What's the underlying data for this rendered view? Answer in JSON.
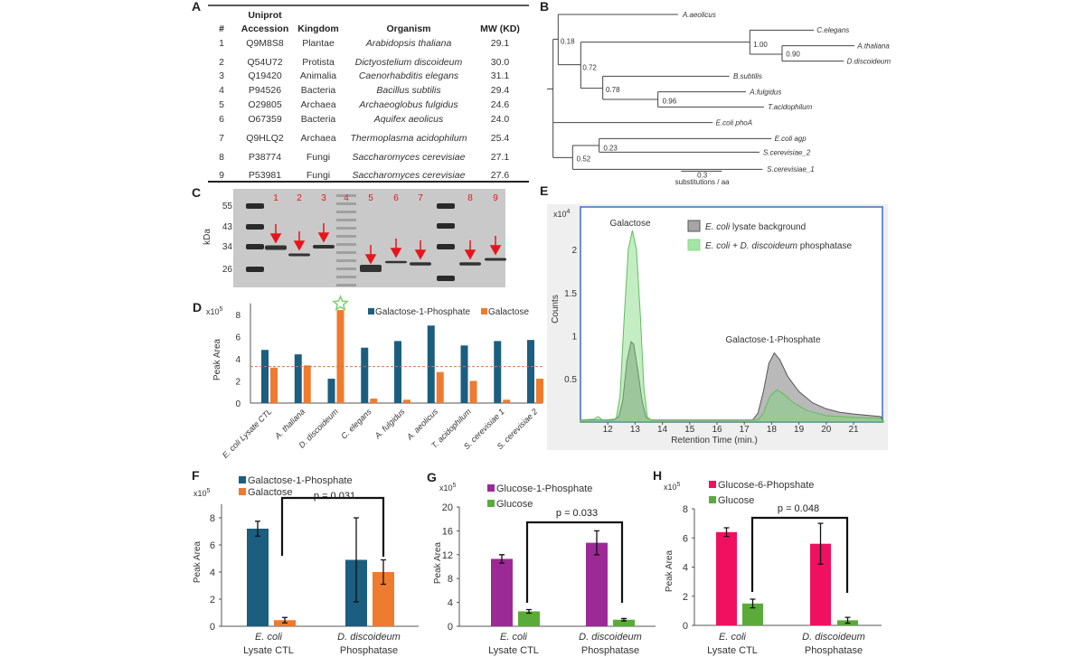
{
  "panel_labels": [
    "A",
    "B",
    "C",
    "D",
    "E",
    "F",
    "G",
    "H"
  ],
  "table": {
    "headers": {
      "num": "#",
      "accession_line1": "Uniprot",
      "accession_line2": "Accession",
      "kingdom": "Kingdom",
      "organism": "Organism",
      "mw": "MW (KD)"
    },
    "rows": [
      {
        "num": "1",
        "accession": "Q9M8S8",
        "kingdom": "Plantae",
        "organism": "Arabidopsis thaliana",
        "mw": "29.1"
      },
      {
        "num": "2",
        "accession": "Q54U72",
        "kingdom": "Protista",
        "organism": "Dictyostelium discoideum",
        "mw": "30.0"
      },
      {
        "num": "3",
        "accession": "Q19420",
        "kingdom": "Animalia",
        "organism": "Caenorhabditis elegans",
        "mw": "31.1"
      },
      {
        "num": "4",
        "accession": "P94526",
        "kingdom": "Bacteria",
        "organism": "Bacillus subtilis",
        "mw": "29.4"
      },
      {
        "num": "5",
        "accession": "O29805",
        "kingdom": "Archaea",
        "organism": "Archaeoglobus fulgidus",
        "mw": "24.6"
      },
      {
        "num": "6",
        "accession": "O67359",
        "kingdom": "Bacteria",
        "organism": "Aquifex aeolicus",
        "mw": "24.0"
      },
      {
        "num": "7",
        "accession": "Q9HLQ2",
        "kingdom": "Archaea",
        "organism": "Thermoplasma acidophilum",
        "mw": "25.4"
      },
      {
        "num": "8",
        "accession": "P38774",
        "kingdom": "Fungi",
        "organism": "Saccharomyces cerevisiae",
        "mw": "27.1"
      },
      {
        "num": "9",
        "accession": "P53981",
        "kingdom": "Fungi",
        "organism": "Saccharomyces cerevisiae",
        "mw": "27.6"
      }
    ]
  },
  "tree": {
    "tips": [
      "A.aeolicus",
      "C.elegans",
      "A.thaliana",
      "D.discoideum",
      "B.subtilis",
      "A.fulgidus",
      "T.acidophilum",
      "E.coli phoA",
      "E.coli agp",
      "S.cerevisiae_2",
      "S.cerevisiae_1"
    ],
    "supports": [
      "0.18",
      "0.72",
      "1.00",
      "0.90",
      "0.78",
      "0.96",
      "0.23",
      "0.52"
    ],
    "scale_value": "0.3",
    "scale_unit": "substitutions / aa"
  },
  "gel": {
    "unit": "kDa",
    "markers": [
      "55",
      "43",
      "34",
      "26"
    ],
    "lanes": [
      "1",
      "2",
      "3",
      "4",
      "5",
      "6",
      "7",
      "8",
      "9"
    ],
    "arrow_color": "#e8141b"
  },
  "chart_data": [
    {
      "panel": "D",
      "type": "bar",
      "ylabel": "Peak Area",
      "y_multiplier": {
        "base": "x10",
        "exp": "5"
      },
      "yticks": [
        "0",
        "2",
        "4",
        "6",
        "8"
      ],
      "ylim": [
        0,
        9
      ],
      "categories": [
        "E. coli Lysate CTL",
        "A. thaliana",
        "D. discoideum",
        "C. elegans",
        "A. fulgidus",
        "A. aeolicus",
        "T. acidophilum",
        "S. cerevisiae 1",
        "S. cerevisiae 2"
      ],
      "series": [
        {
          "name": "Galactose-1-Phosphate",
          "color": "#1b5e80",
          "values": [
            4.8,
            4.4,
            2.2,
            5.0,
            5.6,
            7.0,
            5.2,
            5.6,
            5.7
          ]
        },
        {
          "name": "Galactose",
          "color": "#ef7b2e",
          "values": [
            3.2,
            3.4,
            8.4,
            0.4,
            0.3,
            2.8,
            2.0,
            0.3,
            2.2
          ]
        }
      ],
      "reference_line": 3.3,
      "highlight": {
        "category": "D. discoideum",
        "marker": "star",
        "color": "#7ad16a"
      },
      "legend": "top-right",
      "grid": false
    },
    {
      "panel": "E",
      "type": "area",
      "xlabel": "Retention Time (min.)",
      "ylabel": "Counts",
      "y_multiplier": {
        "base": "x10",
        "exp": "4"
      },
      "xticks": [
        "12",
        "13",
        "14",
        "15",
        "16",
        "17",
        "18",
        "19",
        "20",
        "21"
      ],
      "yticks": [
        "0.5",
        "1",
        "1.5",
        "2"
      ],
      "xlim": [
        11,
        22.1
      ],
      "ylim": [
        0,
        2.5
      ],
      "annotations": [
        "Galactose",
        "Galactose-1-Phosphate"
      ],
      "legend": "top-right",
      "series": [
        {
          "name_italic": "E. coli",
          "name_rest": " lysate background",
          "color": "#808080",
          "points": [
            [
              11,
              0.02
            ],
            [
              12.2,
              0.02
            ],
            [
              12.4,
              0.06
            ],
            [
              12.55,
              0.25
            ],
            [
              12.7,
              0.7
            ],
            [
              12.85,
              0.93
            ],
            [
              12.95,
              0.9
            ],
            [
              13.1,
              0.6
            ],
            [
              13.25,
              0.25
            ],
            [
              13.4,
              0.05
            ],
            [
              13.6,
              0.02
            ],
            [
              17.3,
              0.02
            ],
            [
              17.5,
              0.1
            ],
            [
              17.7,
              0.35
            ],
            [
              17.9,
              0.68
            ],
            [
              18.1,
              0.8
            ],
            [
              18.3,
              0.72
            ],
            [
              18.6,
              0.52
            ],
            [
              19.0,
              0.35
            ],
            [
              19.5,
              0.22
            ],
            [
              20,
              0.15
            ],
            [
              20.5,
              0.11
            ],
            [
              21,
              0.09
            ],
            [
              22,
              0.06
            ]
          ]
        },
        {
          "name_italic": "E. coli + D. discoideum",
          "name_rest": " phosphatase",
          "color": "#7fd87a",
          "points": [
            [
              11,
              0.02
            ],
            [
              11.5,
              0.03
            ],
            [
              11.65,
              0.06
            ],
            [
              11.8,
              0.02
            ],
            [
              12.3,
              0.03
            ],
            [
              12.45,
              0.3
            ],
            [
              12.6,
              1.2
            ],
            [
              12.75,
              2.0
            ],
            [
              12.9,
              2.22
            ],
            [
              13.05,
              2.0
            ],
            [
              13.2,
              1.2
            ],
            [
              13.32,
              0.4
            ],
            [
              13.45,
              0.05
            ],
            [
              13.6,
              0.02
            ],
            [
              17.5,
              0.02
            ],
            [
              17.7,
              0.1
            ],
            [
              17.95,
              0.3
            ],
            [
              18.2,
              0.37
            ],
            [
              18.45,
              0.32
            ],
            [
              18.8,
              0.22
            ],
            [
              19.3,
              0.13
            ],
            [
              20,
              0.07
            ],
            [
              21,
              0.05
            ],
            [
              22,
              0.04
            ]
          ]
        }
      ]
    },
    {
      "panel": "F",
      "type": "bar",
      "ylabel": "Peak Area",
      "y_multiplier": {
        "base": "x10",
        "exp": "5"
      },
      "yticks": [
        "0",
        "2",
        "4",
        "6",
        "8"
      ],
      "ylim": [
        0,
        9
      ],
      "categories": [
        [
          "E. coli",
          "Lysate CTL"
        ],
        [
          "D. discoideum",
          "Phosphatase"
        ]
      ],
      "series": [
        {
          "name": "Galactose-1-Phosphate",
          "color": "#1b5e80",
          "values": [
            7.2,
            4.9
          ],
          "error": [
            [
              6.65,
              7.75
            ],
            [
              1.8,
              8.0
            ]
          ]
        },
        {
          "name": "Galactose",
          "color": "#ef7b2e",
          "values": [
            0.45,
            4.0
          ],
          "error": [
            [
              0.25,
              0.65
            ],
            [
              3.1,
              4.9
            ]
          ]
        }
      ],
      "p_value": "p = 0.031",
      "legend": "top-left"
    },
    {
      "panel": "G",
      "type": "bar",
      "ylabel": "Peak Area",
      "y_multiplier": {
        "base": "x10",
        "exp": "5"
      },
      "yticks": [
        "0",
        "4",
        "8",
        "12",
        "16",
        "20"
      ],
      "ylim": [
        0,
        20
      ],
      "categories": [
        [
          "E. coli",
          "Lysate CTL"
        ],
        [
          "D. discoideum",
          "Phosphatase"
        ]
      ],
      "series": [
        {
          "name": "Glucose-1-Phosphate",
          "color": "#9b2a96",
          "values": [
            11.3,
            14.0
          ],
          "error": [
            [
              10.6,
              12.0
            ],
            [
              12.0,
              16.0
            ]
          ]
        },
        {
          "name": "Glucose",
          "color": "#5aab3a",
          "values": [
            2.5,
            1.1
          ],
          "error": [
            [
              2.2,
              2.8
            ],
            [
              0.9,
              1.3
            ]
          ]
        }
      ],
      "p_value": "p = 0.033",
      "legend": "top-left"
    },
    {
      "panel": "H",
      "type": "bar",
      "ylabel": "Peak Area",
      "y_multiplier": {
        "base": "x10",
        "exp": "5"
      },
      "yticks": [
        "0",
        "2",
        "4",
        "6",
        "8"
      ],
      "ylim": [
        0,
        8
      ],
      "categories": [
        [
          "E. coli",
          "Lysate CTL"
        ],
        [
          "D. discoideum",
          "Phosphatase"
        ]
      ],
      "series": [
        {
          "name": "Glucose-6-Phopshate",
          "color": "#f0105f",
          "values": [
            6.4,
            5.6
          ],
          "error": [
            [
              6.1,
              6.7
            ],
            [
              4.2,
              7.0
            ]
          ]
        },
        {
          "name": "Glucose",
          "color": "#5aab3a",
          "values": [
            1.5,
            0.35
          ],
          "error": [
            [
              1.2,
              1.8
            ],
            [
              0.15,
              0.55
            ]
          ]
        }
      ],
      "p_value": "p = 0.048",
      "legend": "top-left"
    }
  ]
}
